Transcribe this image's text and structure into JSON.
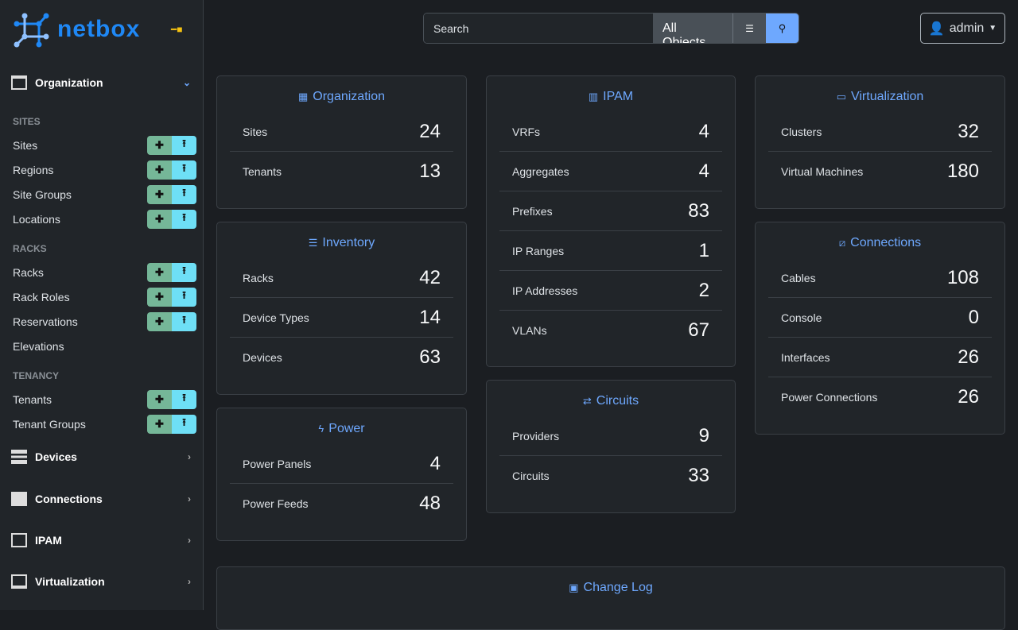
{
  "brand": "netbox",
  "sidebar": {
    "org": "Organization",
    "sections": [
      {
        "title": "SITES",
        "items": [
          {
            "label": "Sites",
            "btns": true
          },
          {
            "label": "Regions",
            "btns": true
          },
          {
            "label": "Site Groups",
            "btns": true
          },
          {
            "label": "Locations",
            "btns": true
          }
        ]
      },
      {
        "title": "RACKS",
        "items": [
          {
            "label": "Racks",
            "btns": true
          },
          {
            "label": "Rack Roles",
            "btns": true
          },
          {
            "label": "Reservations",
            "btns": true
          },
          {
            "label": "Elevations",
            "btns": false
          }
        ]
      },
      {
        "title": "TENANCY",
        "items": [
          {
            "label": "Tenants",
            "btns": true
          },
          {
            "label": "Tenant Groups",
            "btns": true
          }
        ]
      }
    ],
    "menus": [
      "Devices",
      "Connections",
      "IPAM",
      "Virtualization"
    ]
  },
  "search": {
    "placeholder": "Search",
    "scope": "All Objects"
  },
  "user": "admin",
  "cards": {
    "organization": {
      "title": "Organization",
      "rows": [
        [
          "Sites",
          "24"
        ],
        [
          "Tenants",
          "13"
        ]
      ]
    },
    "inventory": {
      "title": "Inventory",
      "rows": [
        [
          "Racks",
          "42"
        ],
        [
          "Device Types",
          "14"
        ],
        [
          "Devices",
          "63"
        ]
      ]
    },
    "power": {
      "title": "Power",
      "rows": [
        [
          "Power Panels",
          "4"
        ],
        [
          "Power Feeds",
          "48"
        ]
      ]
    },
    "ipam": {
      "title": "IPAM",
      "rows": [
        [
          "VRFs",
          "4"
        ],
        [
          "Aggregates",
          "4"
        ],
        [
          "Prefixes",
          "83"
        ],
        [
          "IP Ranges",
          "1"
        ],
        [
          "IP Addresses",
          "2"
        ],
        [
          "VLANs",
          "67"
        ]
      ]
    },
    "circuits": {
      "title": "Circuits",
      "rows": [
        [
          "Providers",
          "9"
        ],
        [
          "Circuits",
          "33"
        ]
      ]
    },
    "virtualization": {
      "title": "Virtualization",
      "rows": [
        [
          "Clusters",
          "32"
        ],
        [
          "Virtual Machines",
          "180"
        ]
      ]
    },
    "connections": {
      "title": "Connections",
      "rows": [
        [
          "Cables",
          "108"
        ],
        [
          "Console",
          "0"
        ],
        [
          "Interfaces",
          "26"
        ],
        [
          "Power Connections",
          "26"
        ]
      ]
    },
    "changelog": {
      "title": "Change Log",
      "rows": []
    }
  }
}
